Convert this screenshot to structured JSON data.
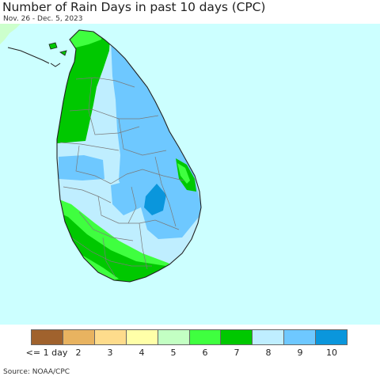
{
  "header": {
    "title": "Number of Rain Days in past 10 days (CPC)",
    "subtitle": "Nov. 26 - Dec. 5, 2023"
  },
  "map": {
    "ocean_color": "#ccffff",
    "land_neighbor_color": "#ccffcc",
    "boundary_color": "#7a7a7a"
  },
  "legend": {
    "items": [
      {
        "label": "<= 1 day",
        "color": "#a0622d"
      },
      {
        "label": "2",
        "color": "#e8b360"
      },
      {
        "label": "3",
        "color": "#fedc8c"
      },
      {
        "label": "4",
        "color": "#ffffa8"
      },
      {
        "label": "5",
        "color": "#c3ffc3"
      },
      {
        "label": "6",
        "color": "#3fff3f"
      },
      {
        "label": "7",
        "color": "#00c800"
      },
      {
        "label": "8",
        "color": "#bfeeff"
      },
      {
        "label": "9",
        "color": "#6ec8ff"
      },
      {
        "label": "10",
        "color": "#0a96dc"
      }
    ]
  },
  "footer": {
    "source": "Source: NOAA/CPC"
  }
}
